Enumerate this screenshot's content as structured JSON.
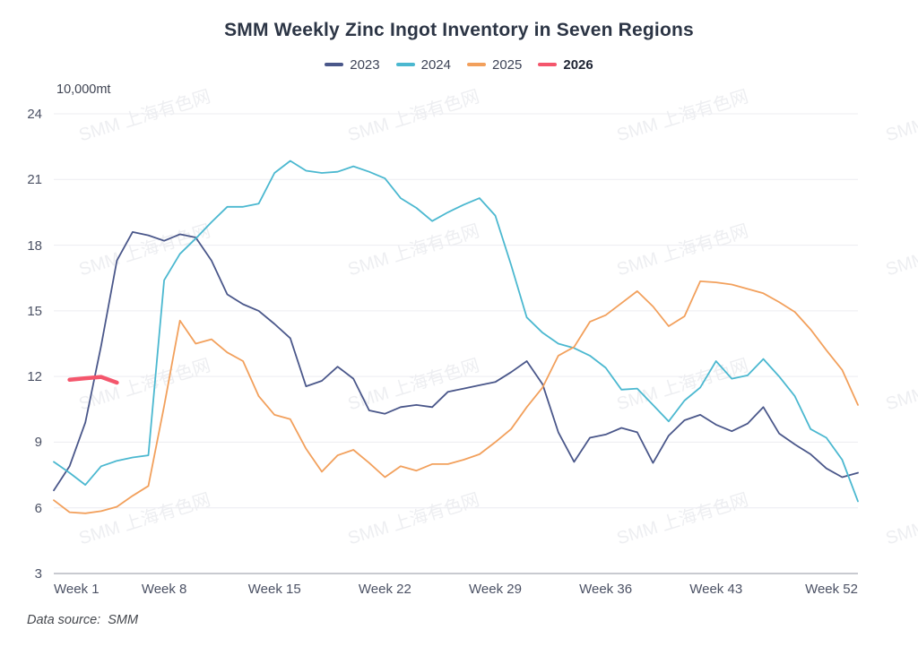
{
  "title": "SMM Weekly Zinc Ingot Inventory in Seven Regions",
  "data_source": "Data source:  SMM",
  "watermark_text": "SMM 上海有色网",
  "legend": [
    {
      "label": "2023",
      "color": "#4a578a",
      "bold": false
    },
    {
      "label": "2024",
      "color": "#4bb8d0",
      "bold": false
    },
    {
      "label": "2025",
      "color": "#f2a05c",
      "bold": false
    },
    {
      "label": "2026",
      "color": "#f4566c",
      "bold": true
    }
  ],
  "chart_data": {
    "type": "line",
    "title": "SMM Weekly Zinc Ingot Inventory in Seven Regions",
    "xlabel": "Week",
    "ylabel": "10,000mt",
    "grid": true,
    "legend_position": "top",
    "y_axis": {
      "unit": "10,000mt",
      "min": 3,
      "max": 24,
      "step": 3,
      "ticks": [
        24,
        21,
        18,
        15,
        12,
        9,
        6,
        3
      ]
    },
    "x_axis": {
      "total_weeks": 52,
      "tick_weeks": [
        1,
        8,
        15,
        22,
        29,
        36,
        43,
        52
      ],
      "tick_labels": [
        "Week 1",
        "Week 8",
        "Week 15",
        "Week 22",
        "Week 29",
        "Week 36",
        "Week 43",
        "Week 52"
      ]
    },
    "series": [
      {
        "name": "2023",
        "color": "#4a578a",
        "line_width": 1.8,
        "start_week": 1,
        "values": [
          6.8,
          7.9,
          9.9,
          13.4,
          17.3,
          18.6,
          18.45,
          18.2,
          18.5,
          18.35,
          17.3,
          15.75,
          15.3,
          15.0,
          14.4,
          13.75,
          11.55,
          11.8,
          12.45,
          11.9,
          10.45,
          10.3,
          10.6,
          10.7,
          10.6,
          11.3,
          11.45,
          11.6,
          11.75,
          12.2,
          12.7,
          11.65,
          9.45,
          8.1,
          9.2,
          9.35,
          9.65,
          9.45,
          8.05,
          9.3,
          10.0,
          10.25,
          9.8,
          9.5,
          9.85,
          10.6,
          9.4,
          8.9,
          8.45,
          7.8,
          7.4,
          7.6
        ]
      },
      {
        "name": "2024",
        "color": "#4bb8d0",
        "line_width": 1.8,
        "start_week": 1,
        "values": [
          8.1,
          7.6,
          7.05,
          7.9,
          8.15,
          8.3,
          8.4,
          16.4,
          17.6,
          18.3,
          19.05,
          19.75,
          19.75,
          19.9,
          21.3,
          21.85,
          21.4,
          21.3,
          21.35,
          21.6,
          21.35,
          21.05,
          20.15,
          19.7,
          19.1,
          19.5,
          19.85,
          20.15,
          19.35,
          17.1,
          14.7,
          14.0,
          13.5,
          13.3,
          12.95,
          12.4,
          11.4,
          11.45,
          10.7,
          9.95,
          10.9,
          11.5,
          12.7,
          11.9,
          12.05,
          12.8,
          12.0,
          11.1,
          9.6,
          9.2,
          8.2,
          6.3
        ]
      },
      {
        "name": "2025",
        "color": "#f2a05c",
        "line_width": 1.8,
        "start_week": 1,
        "values": [
          6.35,
          5.8,
          5.75,
          5.85,
          6.05,
          6.55,
          7.0,
          10.65,
          14.55,
          13.5,
          13.7,
          13.1,
          12.7,
          11.1,
          10.25,
          10.05,
          8.7,
          7.65,
          8.4,
          8.65,
          8.05,
          7.4,
          7.9,
          7.7,
          8.0,
          8.0,
          8.2,
          8.45,
          9.0,
          9.6,
          10.6,
          11.5,
          12.95,
          13.35,
          14.5,
          14.8,
          15.35,
          15.9,
          15.2,
          14.3,
          14.75,
          16.35,
          16.3,
          16.2,
          16.0,
          15.8,
          15.4,
          14.95,
          14.15,
          13.2,
          12.3,
          10.7
        ]
      },
      {
        "name": "2026",
        "color": "#f4566c",
        "line_width": 4.5,
        "start_week": 2,
        "values": [
          11.85,
          11.92,
          11.98,
          11.72
        ]
      }
    ]
  }
}
